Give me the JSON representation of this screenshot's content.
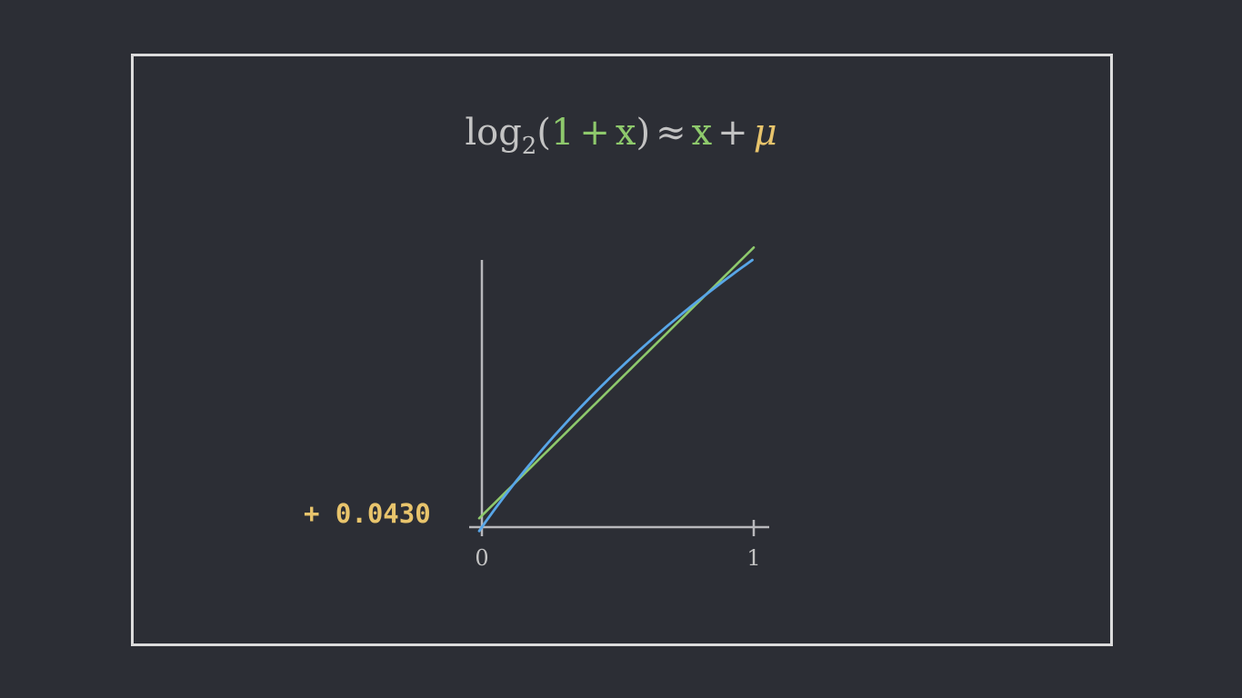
{
  "formula": {
    "log": "log",
    "base": "2",
    "open_paren": "(",
    "one": "1",
    "plus1": "+",
    "x1": "x",
    "close_paren": ")",
    "approx": "≈",
    "x2": "x",
    "plus2": "+",
    "mu": "μ"
  },
  "offset_label": "+ 0.0430",
  "colors": {
    "background": "#2c2e35",
    "frame": "#dcdcdc",
    "axis": "#b8b8bc",
    "log_curve": "#58a6e8",
    "linear": "#8ec96c",
    "mu": "#e8c46c",
    "text": "#c3c3c3"
  },
  "chart_data": {
    "type": "line",
    "xlim": [
      0,
      1
    ],
    "ylim": [
      0,
      1
    ],
    "x_ticks": [
      "0",
      "1"
    ],
    "series": [
      {
        "name": "log2(1 + x)",
        "function": "log2(1+x)",
        "x_range": [
          -0.01,
          0.995
        ],
        "color": "#58a6e8"
      },
      {
        "name": "x + μ",
        "function": "x + 0.0430",
        "x_range": [
          -0.01,
          1.0
        ],
        "color": "#8ec96c"
      }
    ],
    "mu": 0.043
  }
}
